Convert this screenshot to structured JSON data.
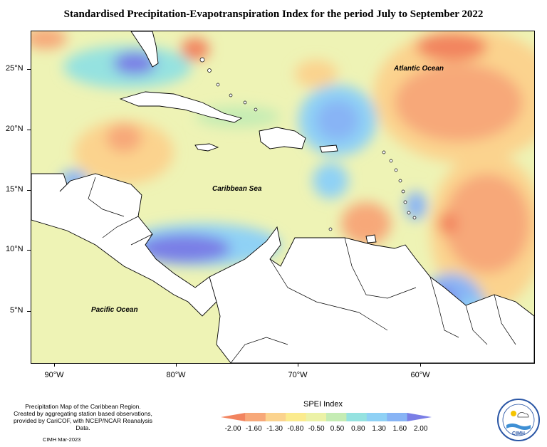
{
  "title": "Standardised Precipitation-Evapotranspiration Index for the period July to September 2022",
  "lat_labels": [
    "25°N",
    "20°N",
    "15°N",
    "10°N",
    "5°N"
  ],
  "lon_labels": [
    "90°W",
    "80°W",
    "70°W",
    "60°W"
  ],
  "ocean_labels": {
    "atlantic": "Atlantic Ocean",
    "caribbean": "Caribbean Sea",
    "pacific": "Pacific Ocean"
  },
  "legend": {
    "title": "SPEI Index",
    "values": [
      "-2.00",
      "-1.60",
      "-1.30",
      "-0.80",
      "-0.50",
      "0.50",
      "0.80",
      "1.30",
      "1.60",
      "2.00"
    ],
    "colors": [
      "#f2845f",
      "#f7a879",
      "#fbd38e",
      "#fbeb8e",
      "#ecf2a7",
      "#c5ecb4",
      "#95e2e0",
      "#8fd1f5",
      "#88b4f5",
      "#7a7ee6"
    ]
  },
  "credit_lines": [
    "Precipitation Map of the Caribbean Region.",
    "Created by aggregating station based observations,",
    "provided by CariCOF, with NCEP/NCAR Reanalysis Data."
  ],
  "footer": "CIMH Mar-2023",
  "logo_text": "CIMH"
}
